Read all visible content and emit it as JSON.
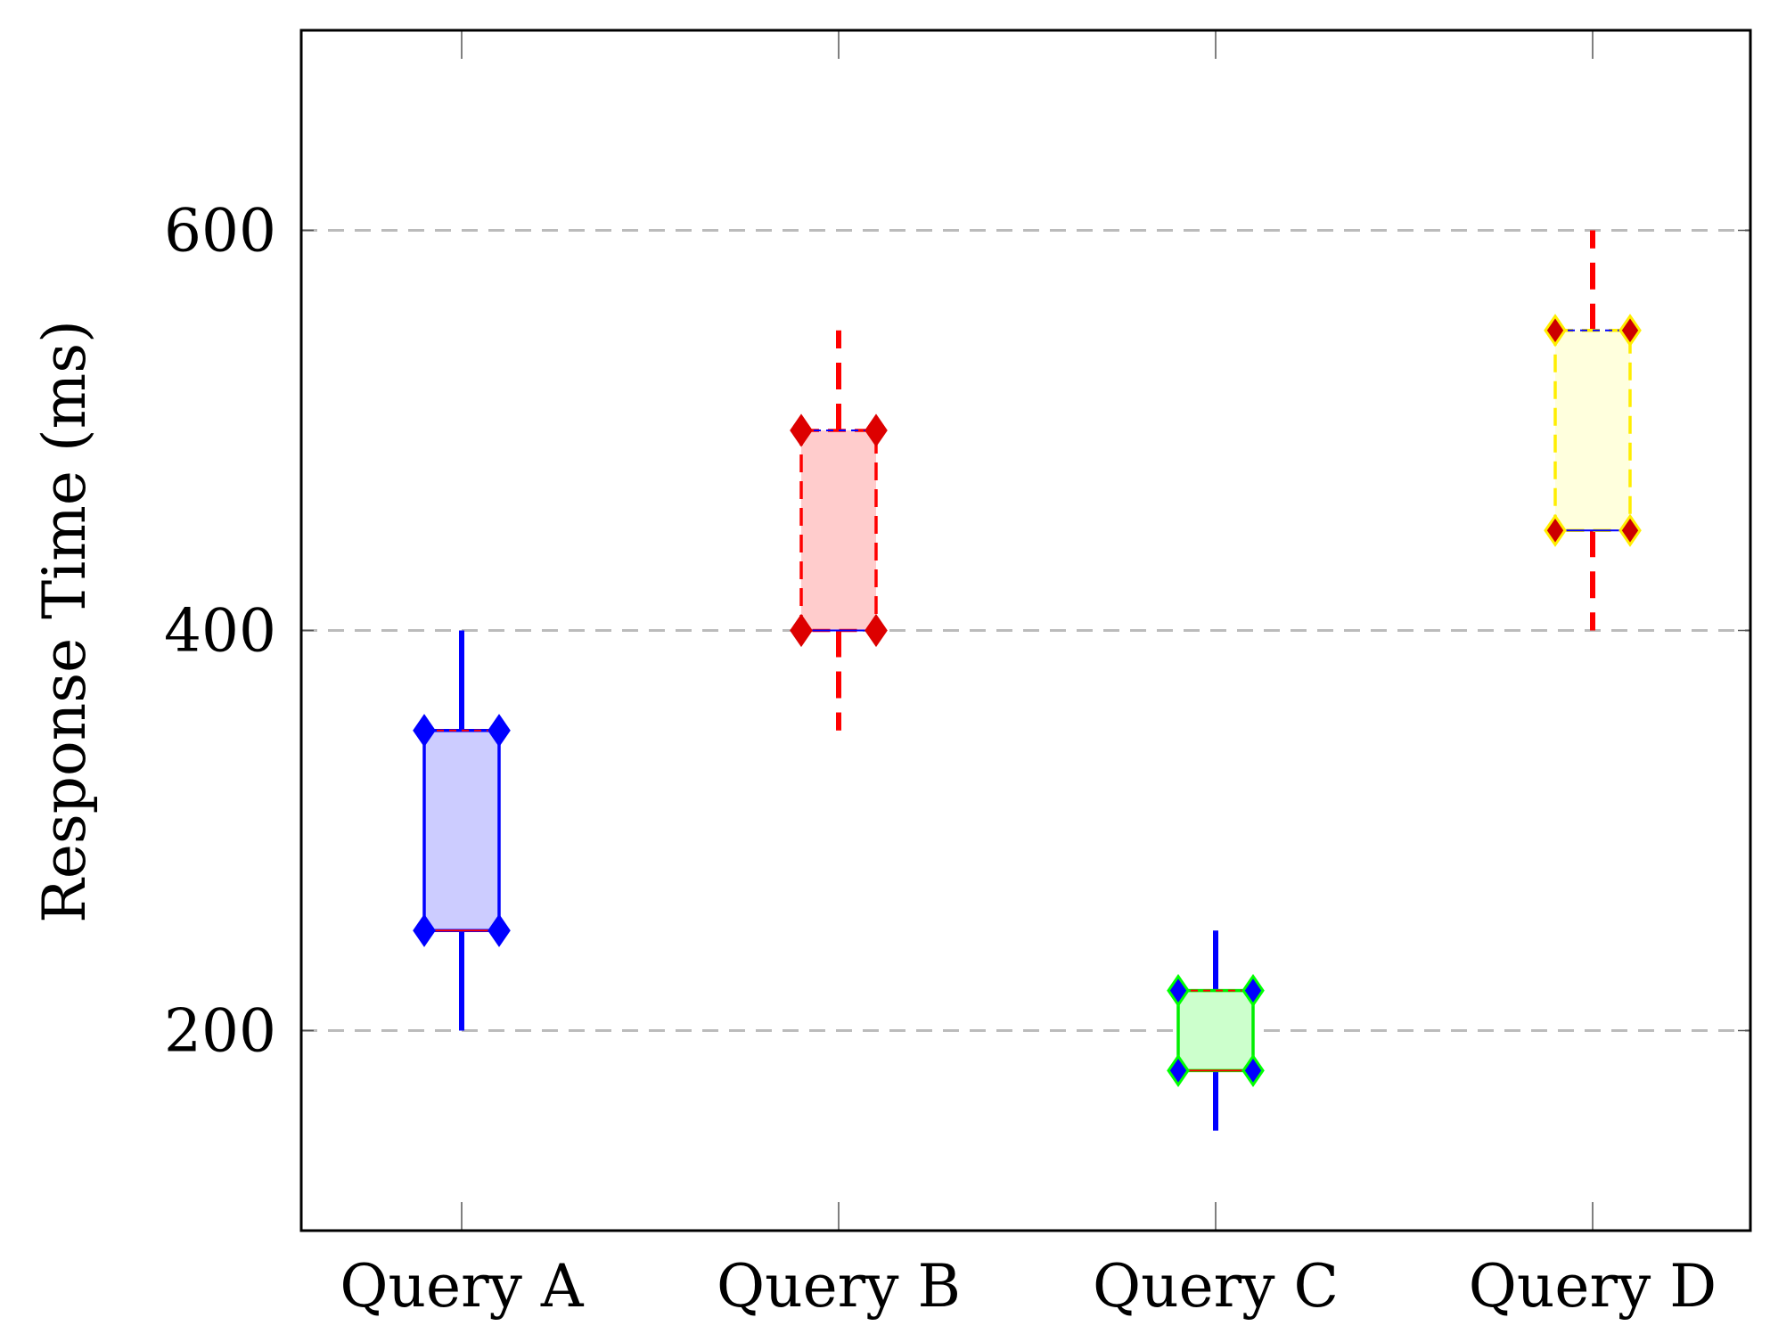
{
  "chart_data": {
    "type": "boxplot",
    "title": "",
    "xlabel": "",
    "ylabel": "Response Time (ms)",
    "ylim": [
      100,
      700
    ],
    "yticks": [
      200,
      400,
      600
    ],
    "ytick_labels": [
      "200",
      "400",
      "600"
    ],
    "grid": "horizontal dashed at major ticks",
    "categories": [
      "Query A",
      "Query B",
      "Query C",
      "Query D"
    ],
    "boxes": [
      {
        "name": "Query A",
        "whisker_low": 200,
        "q1": 250,
        "q3": 350,
        "whisker_high": 400,
        "fill": "#ccccff",
        "edge": "#0000ff",
        "whisker": "#0000ff",
        "whisker_dash": false,
        "marker_fill": "#0000ff",
        "marker_edge": "#0000ff",
        "box_dash": false,
        "median_color": "#ff0000"
      },
      {
        "name": "Query B",
        "whisker_low": 350,
        "q1": 400,
        "q3": 500,
        "whisker_high": 550,
        "fill": "#ffcccc",
        "edge": "#ff0000",
        "whisker": "#ff0000",
        "whisker_dash": true,
        "marker_fill": "#dd0000",
        "marker_edge": "#dd0000",
        "box_dash": true,
        "median_color": "#0000ff"
      },
      {
        "name": "Query C",
        "whisker_low": 150,
        "q1": 180,
        "q3": 220,
        "whisker_high": 250,
        "fill": "#ccffcc",
        "edge": "#00ee00",
        "whisker": "#0000ff",
        "whisker_dash": false,
        "marker_fill": "#0000ff",
        "marker_edge": "#00ff00",
        "box_dash": false,
        "median_color": "#ff0000"
      },
      {
        "name": "Query D",
        "whisker_low": 400,
        "q1": 450,
        "q3": 550,
        "whisker_high": 600,
        "fill": "#ffffdd",
        "edge": "#ffee00",
        "whisker": "#ff0000",
        "whisker_dash": true,
        "marker_fill": "#cc0000",
        "marker_edge": "#ffee00",
        "box_dash": true,
        "median_color": "#0000ff"
      }
    ]
  }
}
